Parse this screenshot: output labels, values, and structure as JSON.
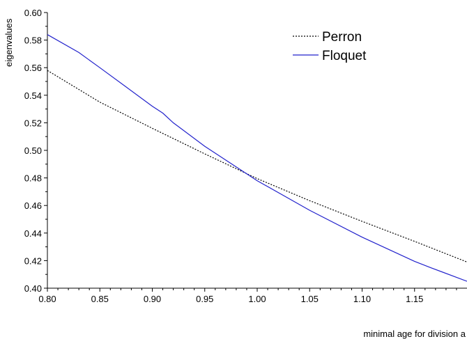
{
  "chart_data": {
    "type": "line",
    "title": "",
    "xlabel": "minimal age for division a",
    "ylabel": "eigenvalues",
    "xlim": [
      0.8,
      1.2
    ],
    "ylim": [
      0.4,
      0.6
    ],
    "x_ticks": [
      "0.80",
      "0.85",
      "0.90",
      "0.95",
      "1.00",
      "1.05",
      "1.10",
      "1.15"
    ],
    "x_tick_values": [
      0.8,
      0.85,
      0.9,
      0.95,
      1.0,
      1.05,
      1.1,
      1.15
    ],
    "y_ticks": [
      "0.40",
      "0.42",
      "0.44",
      "0.46",
      "0.48",
      "0.50",
      "0.52",
      "0.54",
      "0.56",
      "0.58",
      "0.60"
    ],
    "y_tick_values": [
      0.4,
      0.42,
      0.44,
      0.46,
      0.48,
      0.5,
      0.52,
      0.54,
      0.56,
      0.58,
      0.6
    ],
    "grid": false,
    "legend_position": "top-right",
    "series": [
      {
        "name": "Perron",
        "color": "#000000",
        "style": "dotted",
        "x": [
          0.8,
          0.85,
          0.9,
          0.95,
          1.0,
          1.05,
          1.1,
          1.15,
          1.2
        ],
        "y": [
          0.558,
          0.535,
          0.516,
          0.4975,
          0.4795,
          0.4635,
          0.4485,
          0.434,
          0.419
        ]
      },
      {
        "name": "Floquet",
        "color": "#2222cc",
        "style": "solid",
        "x": [
          0.8,
          0.83,
          0.85,
          0.875,
          0.9,
          0.91,
          0.92,
          0.95,
          1.0,
          1.05,
          1.1,
          1.15,
          1.165,
          1.2
        ],
        "y": [
          0.584,
          0.571,
          0.56,
          0.546,
          0.532,
          0.527,
          0.52,
          0.503,
          0.478,
          0.4565,
          0.437,
          0.4195,
          0.415,
          0.405
        ]
      }
    ]
  }
}
